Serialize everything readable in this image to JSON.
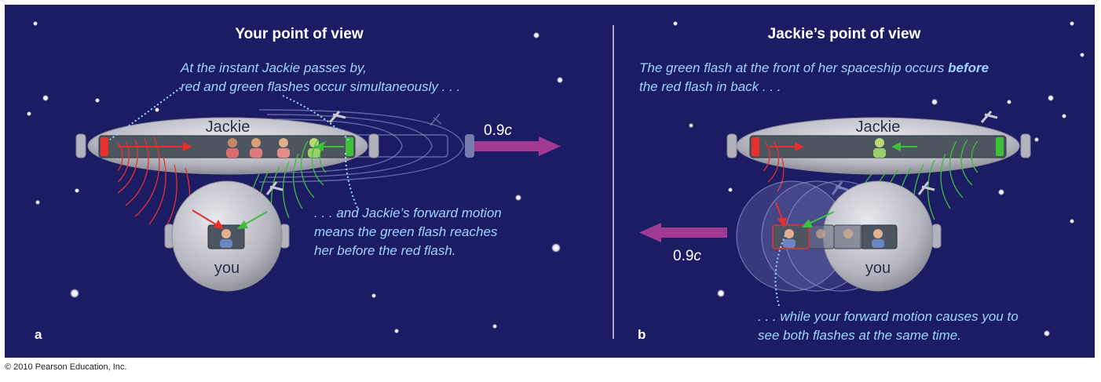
{
  "colors": {
    "background": "#1c1c64",
    "ship_hull": "#c4c4cc",
    "window": "#4c5560",
    "red_flash": "#e8302a",
    "green_flash": "#3fbf3a",
    "arrow": "#a03a92",
    "caption_text": "#9fd4ff"
  },
  "panel_a": {
    "letter": "a",
    "title": "Your point of view",
    "caption_top": [
      "At the instant Jackie passes by,",
      "red and green flashes occur simultaneously . . ."
    ],
    "caption_bottom": [
      ". . . and Jackie’s forward motion",
      "means the green flash reaches",
      "her before the red flash."
    ],
    "ship_label": "Jackie",
    "pod_label": "you",
    "speed_value": "0.9",
    "speed_symbol": "c"
  },
  "panel_b": {
    "letter": "b",
    "title": "Jackie’s point of view",
    "caption_top_1a": "The green flash at the front of her spaceship occurs ",
    "caption_top_1b": "before",
    "caption_top_2": "the red flash in back . . .",
    "caption_bottom": [
      ". . . while your forward motion causes you to",
      "see both flashes at the same time."
    ],
    "ship_label": "Jackie",
    "pod_label": "you",
    "speed_value": "0.9",
    "speed_symbol": "c"
  },
  "copyright": "© 2010 Pearson Education, Inc."
}
